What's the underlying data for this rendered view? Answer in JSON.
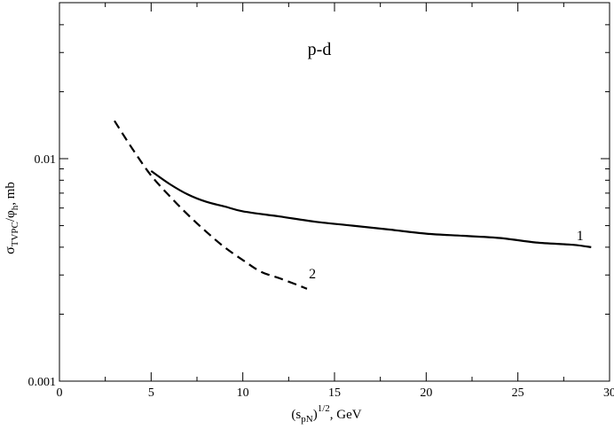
{
  "chart_data": {
    "type": "line",
    "title": "",
    "annotation": "p-d",
    "xlabel": {
      "base": "(s",
      "sub": "pN",
      "close": ")",
      "sup": "1/2",
      "tail": ", GeV"
    },
    "ylabel": {
      "sigma": "σ",
      "sub": "TVPC",
      "mid": "/φ",
      "sub2": "h",
      "tail": ", mb"
    },
    "xlim": [
      0,
      30
    ],
    "ylim": [
      0.001,
      0.05
    ],
    "yscale": "log",
    "grid": false,
    "x_ticks": [
      {
        "value": 0,
        "label": "0"
      },
      {
        "value": 5,
        "label": "5"
      },
      {
        "value": 10,
        "label": "10"
      },
      {
        "value": 15,
        "label": "15"
      },
      {
        "value": 20,
        "label": "20"
      },
      {
        "value": 25,
        "label": "25"
      },
      {
        "value": 30,
        "label": "30"
      }
    ],
    "y_ticks": [
      {
        "value": 0.001,
        "label": "0.001"
      },
      {
        "value": 0.01,
        "label": "0.01"
      }
    ],
    "series": [
      {
        "name": "1",
        "style": "solid",
        "color": "#000000",
        "x": [
          5,
          6,
          7,
          8,
          9,
          10,
          12,
          14,
          16,
          18,
          20,
          22,
          24,
          26,
          28,
          29
        ],
        "y": [
          0.0088,
          0.0077,
          0.0069,
          0.0064,
          0.0061,
          0.0058,
          0.0055,
          0.0052,
          0.005,
          0.0048,
          0.0046,
          0.0045,
          0.0044,
          0.0042,
          0.0041,
          0.004
        ]
      },
      {
        "name": "2",
        "style": "dashed",
        "color": "#000000",
        "x": [
          3,
          4,
          5,
          6,
          7,
          8,
          9,
          10,
          11,
          12,
          13,
          13.5
        ],
        "y": [
          0.0148,
          0.011,
          0.0084,
          0.0068,
          0.0056,
          0.0047,
          0.004,
          0.0035,
          0.0031,
          0.0029,
          0.0027,
          0.0026
        ]
      }
    ],
    "curve_labels": [
      {
        "text": "1",
        "x": 28.2,
        "y": 0.0043
      },
      {
        "text": "2",
        "x": 13.6,
        "y": 0.0029
      }
    ]
  }
}
